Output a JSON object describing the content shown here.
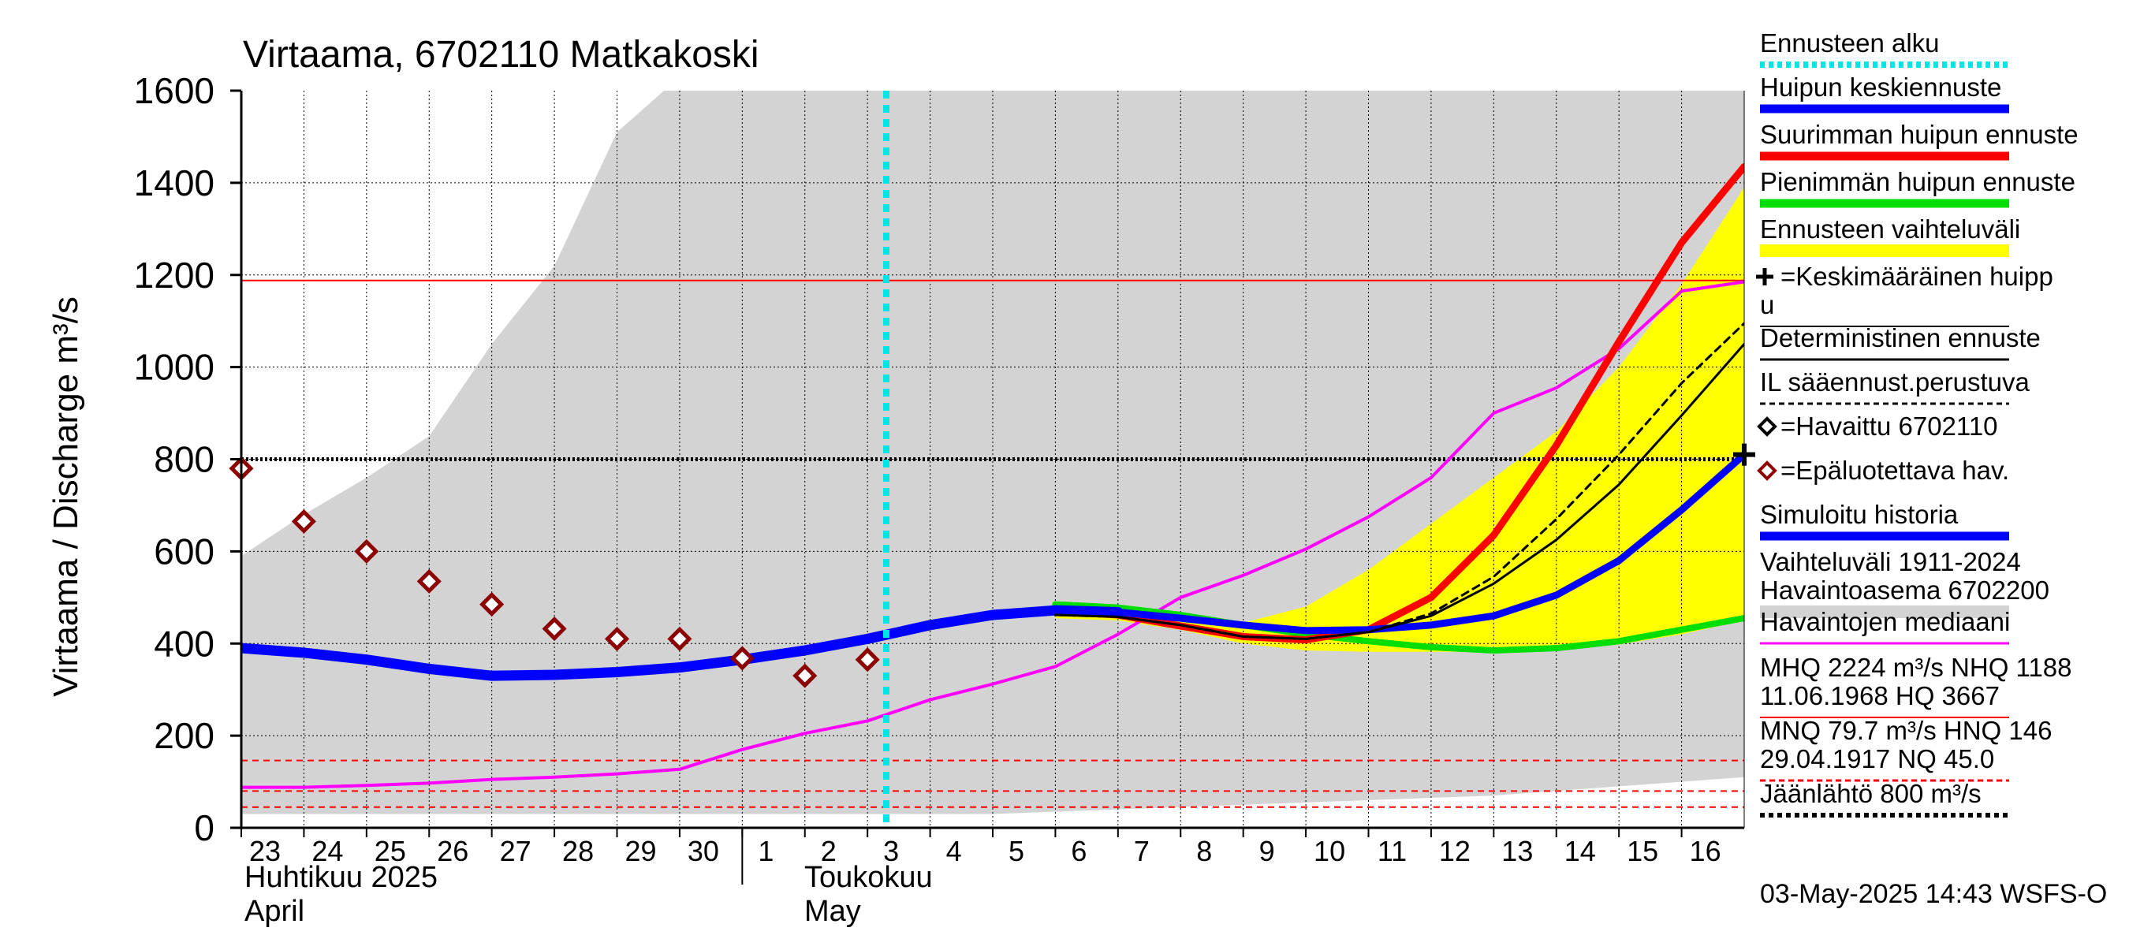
{
  "chart_data": {
    "type": "line",
    "title": "Virtaama, 6702110 Matkakoski",
    "ylabel": "Virtaama / Discharge   m³/s",
    "ylim": [
      0,
      1600
    ],
    "yticks": [
      0,
      200,
      400,
      600,
      800,
      1000,
      1200,
      1400,
      1600
    ],
    "x_days": [
      "23",
      "24",
      "25",
      "26",
      "27",
      "28",
      "29",
      "30",
      "1",
      "2",
      "3",
      "4",
      "5",
      "6",
      "7",
      "8",
      "9",
      "10",
      "11",
      "12",
      "13",
      "14",
      "15",
      "16"
    ],
    "month_labels": {
      "april_fi": "Huhtikuu  2025",
      "april_en": "April",
      "may_fi": "Toukokuu",
      "may_en": "May"
    },
    "forecast_start_day": 10.3,
    "grid": true,
    "legend_position": "right",
    "timestamp": "03-May-2025 14:43 WSFS-O",
    "legend": [
      {
        "label": "Ennusteen alku",
        "color": "#00e5e5",
        "style": "dotted"
      },
      {
        "label": "Huipun keskiennuste",
        "color": "#0000ff",
        "style": "thick"
      },
      {
        "label": "Suurimman huipun ennuste",
        "color": "#ff0000",
        "style": "thick"
      },
      {
        "label": "Pienimmän huipun ennuste",
        "color": "#00dd00",
        "style": "thick"
      },
      {
        "label": "Ennusteen vaihteluväli",
        "color": "#ffff00",
        "style": "band"
      },
      {
        "label": "=Keskimääräinen huipp",
        "label2": "u",
        "color": "#000000",
        "style": "cross"
      },
      {
        "label": "Deterministinen ennuste",
        "color": "#000000",
        "style": "solid"
      },
      {
        "label": "IL sääennust.perustuva",
        "color": "#000000",
        "style": "dashed"
      },
      {
        "label": "=Havaittu 6702110",
        "color": "#000000",
        "style": "diamond"
      },
      {
        "label": "=Epäluotettava hav.",
        "color": "#8b0000",
        "style": "diamond"
      },
      {
        "label": "Simuloitu historia",
        "color": "#0000ff",
        "style": "thick"
      },
      {
        "label": "Vaihteluväli 1911-2024",
        "label2": " Havaintoasema 6702200",
        "color": "#d3d3d3",
        "style": "band"
      },
      {
        "label": "Havaintojen mediaani",
        "color": "#ff00ff",
        "style": "solid"
      },
      {
        "label": "MHQ 2224 m³/s NHQ 1188",
        "label2": "11.06.1968 HQ 3667",
        "color": "#ff0000",
        "style": "thin"
      },
      {
        "label": "MNQ 79.7 m³/s HNQ  146",
        "label2": "29.04.1917 NQ 45.0",
        "color": "#ff0000",
        "style": "dashed"
      },
      {
        "label": "Jäänlähtö 800 m³/s",
        "color": "#000000",
        "style": "dotted"
      }
    ],
    "hlines": {
      "nhq": 1188,
      "hnq": 146,
      "mnq": 79.7,
      "nq": 45.0,
      "ice_breakup": 800
    },
    "history_band": {
      "x": [
        0,
        1,
        2,
        3,
        4,
        5,
        6,
        7,
        8,
        9,
        10,
        11,
        12,
        13,
        14,
        15,
        16,
        17,
        18,
        19,
        20,
        21,
        22,
        23,
        24
      ],
      "upper": [
        590,
        680,
        760,
        850,
        1050,
        1220,
        1510,
        1630,
        1650,
        1650,
        1650,
        1650,
        1650,
        1650,
        1650,
        1650,
        1650,
        1650,
        1650,
        1650,
        1650,
        1650,
        1650,
        1650,
        1650
      ],
      "lower": [
        30,
        30,
        30,
        30,
        30,
        30,
        30,
        30,
        30,
        30,
        30,
        30,
        30,
        35,
        40,
        45,
        50,
        55,
        60,
        65,
        70,
        80,
        90,
        100,
        110
      ]
    },
    "series": [
      {
        "name": "Simuloitu historia",
        "color": "#0000ff",
        "x": [
          0,
          1,
          2,
          3,
          4,
          5,
          6,
          7,
          8,
          9,
          10,
          11,
          12,
          13,
          14
        ],
        "y": [
          390,
          380,
          365,
          345,
          330,
          332,
          338,
          348,
          365,
          385,
          410,
          440,
          462,
          472,
          468
        ]
      },
      {
        "name": "Havaintojen mediaani",
        "color": "#ff00ff",
        "x": [
          0,
          1,
          2,
          3,
          4,
          5,
          6,
          7,
          8,
          9,
          10,
          11,
          12,
          13,
          14,
          15,
          16,
          17,
          18,
          19,
          20,
          21,
          22,
          23,
          24
        ],
        "y": [
          88,
          88,
          92,
          97,
          105,
          110,
          117,
          127,
          170,
          205,
          232,
          278,
          312,
          350,
          420,
          500,
          548,
          605,
          675,
          760,
          900,
          955,
          1040,
          1165,
          1185
        ]
      },
      {
        "name": "Huipun keskiennuste",
        "color": "#0000ff",
        "x": [
          13,
          14,
          15,
          16,
          17,
          18,
          19,
          20,
          21,
          22,
          23,
          24
        ],
        "y": [
          472,
          468,
          455,
          440,
          428,
          430,
          440,
          460,
          505,
          580,
          690,
          810
        ]
      },
      {
        "name": "Suurimman huipun ennuste",
        "color": "#ff0000",
        "x": [
          13,
          14,
          15,
          16,
          17,
          18,
          19,
          20,
          21,
          22,
          23,
          24
        ],
        "y": [
          470,
          462,
          438,
          415,
          408,
          430,
          500,
          635,
          830,
          1055,
          1270,
          1435
        ]
      },
      {
        "name": "Pienimmän huipun ennuste",
        "color": "#00dd00",
        "x": [
          13,
          14,
          15,
          16,
          17,
          18,
          19,
          20,
          21,
          22,
          23,
          24
        ],
        "y": [
          485,
          478,
          462,
          440,
          420,
          405,
          392,
          385,
          390,
          405,
          430,
          455
        ]
      },
      {
        "name": "Deterministinen ennuste",
        "color": "#000000",
        "x": [
          13,
          14,
          15,
          16,
          17,
          18,
          19,
          20,
          21,
          22,
          23,
          24
        ],
        "y": [
          462,
          458,
          440,
          415,
          410,
          425,
          460,
          530,
          625,
          745,
          895,
          1050
        ]
      },
      {
        "name": "IL sääennust.perustuva",
        "color": "#000000",
        "x": [
          13,
          14,
          15,
          16,
          17,
          18,
          19,
          20,
          21,
          22,
          23,
          24
        ],
        "y": [
          462,
          458,
          440,
          415,
          410,
          425,
          465,
          545,
          670,
          810,
          965,
          1095
        ]
      }
    ],
    "forecast_band": {
      "x": [
        13,
        14,
        15,
        16,
        17,
        18,
        19,
        20,
        21,
        22,
        23,
        24
      ],
      "upper": [
        475,
        470,
        455,
        445,
        480,
        560,
        660,
        760,
        860,
        1000,
        1180,
        1390
      ],
      "lower": [
        455,
        450,
        430,
        400,
        385,
        382,
        382,
        382,
        385,
        398,
        420,
        450
      ]
    },
    "observed_unreliable": {
      "x": [
        0,
        1,
        2,
        3,
        4,
        5,
        6,
        7,
        8,
        9,
        10
      ],
      "y": [
        780,
        665,
        600,
        535,
        485,
        432,
        410,
        410,
        368,
        330,
        365
      ]
    }
  }
}
